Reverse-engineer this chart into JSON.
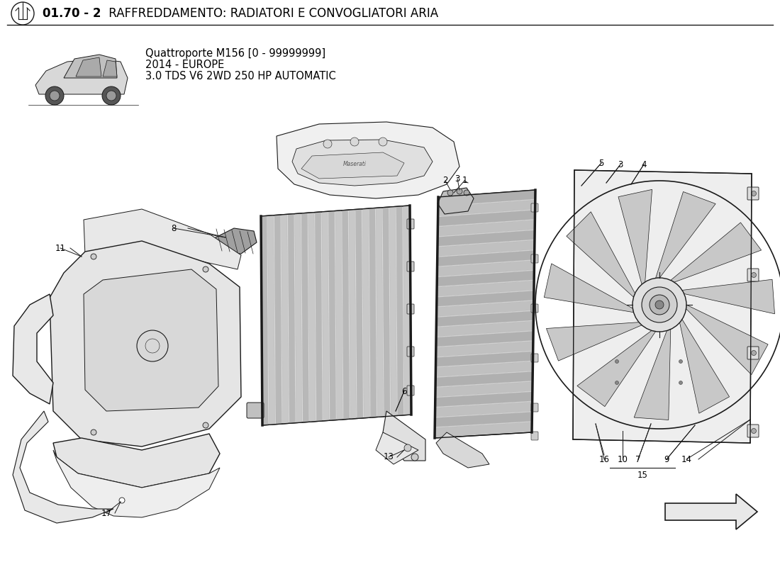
{
  "title_bold": "01.70 - 2",
  "title_normal": " RAFFREDDAMENTO: RADIATORI E CONVOGLIATORI ARIA",
  "subtitle_line1": "Quattroporte M156 [0 - 99999999]",
  "subtitle_line2": "2014 - EUROPE",
  "subtitle_line3": "3.0 TDS V6 2WD 250 HP AUTOMATIC",
  "bg_color": "#ffffff",
  "text_color": "#000000",
  "line_color": "#1a1a1a",
  "lw_main": 1.0,
  "lw_thin": 0.5
}
